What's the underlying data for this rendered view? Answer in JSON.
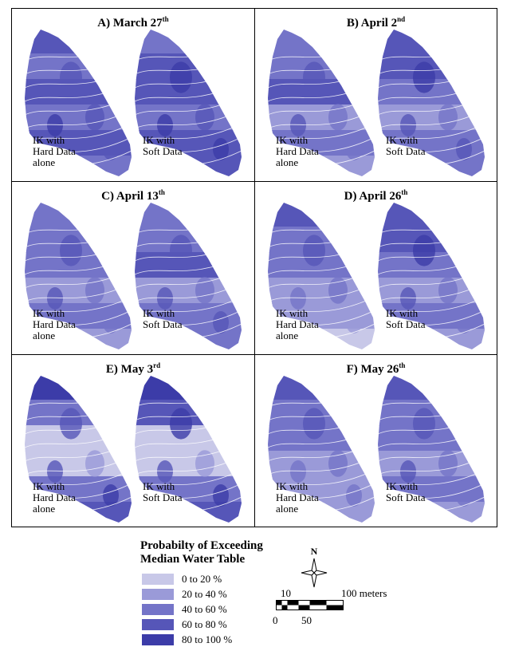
{
  "panels": [
    {
      "letter": "A) March 27",
      "sup": "th",
      "shading": [
        [
          4,
          3,
          4,
          3,
          4,
          3
        ],
        [
          3,
          4,
          4,
          3,
          4,
          4
        ]
      ],
      "left_label": "IK with\nHard Data\nalone",
      "right_label": "IK with\nSoft Data"
    },
    {
      "letter": "B) April 2",
      "sup": "nd",
      "shading": [
        [
          3,
          3,
          4,
          2,
          3,
          2
        ],
        [
          4,
          4,
          3,
          2,
          3,
          3
        ]
      ],
      "left_label": "IK with\nHard Data\nalone",
      "right_label": "IK with\nSoft Data"
    },
    {
      "letter": "C) April 13",
      "sup": "th",
      "shading": [
        [
          3,
          3,
          3,
          2,
          3,
          2
        ],
        [
          3,
          3,
          4,
          2,
          3,
          3
        ]
      ],
      "left_label": "IK with\nHard Data\nalone",
      "right_label": "IK with\nSoft Data"
    },
    {
      "letter": "D) April 26",
      "sup": "th",
      "shading": [
        [
          4,
          3,
          3,
          2,
          2,
          1
        ],
        [
          4,
          4,
          3,
          2,
          3,
          2
        ]
      ],
      "left_label": "IK with\nHard Data\nalone",
      "right_label": "IK with\nSoft Data"
    },
    {
      "letter": "E) May 3",
      "sup": "rd",
      "shading": [
        [
          5,
          3,
          1,
          1,
          3,
          4
        ],
        [
          5,
          4,
          1,
          1,
          3,
          4
        ]
      ],
      "left_label": "IK with\nHard Data\nalone",
      "right_label": "IK with\nSoft Data"
    },
    {
      "letter": "F) May 26",
      "sup": "th",
      "shading": [
        [
          4,
          3,
          3,
          2,
          2,
          2
        ],
        [
          4,
          3,
          3,
          2,
          3,
          2
        ]
      ],
      "left_label": "IK with\nHard Data\nalone",
      "right_label": "IK with\nSoft Data"
    }
  ],
  "legend": {
    "title_line1": "Probabilty of Exceeding",
    "title_line2": "Median Water Table",
    "items": [
      {
        "label": "0 to 20 %",
        "color": "#c8c8e8"
      },
      {
        "label": "20 to 40 %",
        "color": "#9a9ad8"
      },
      {
        "label": "40 to 60 %",
        "color": "#7474c8"
      },
      {
        "label": "60 to 80 %",
        "color": "#5656b8"
      },
      {
        "label": "80 to 100 %",
        "color": "#3c3ca8"
      }
    ]
  },
  "compass": {
    "north_label": "N"
  },
  "scale": {
    "top_left": "10",
    "top_right": "100 meters",
    "bottom_left": "0",
    "bottom_mid": "50"
  }
}
